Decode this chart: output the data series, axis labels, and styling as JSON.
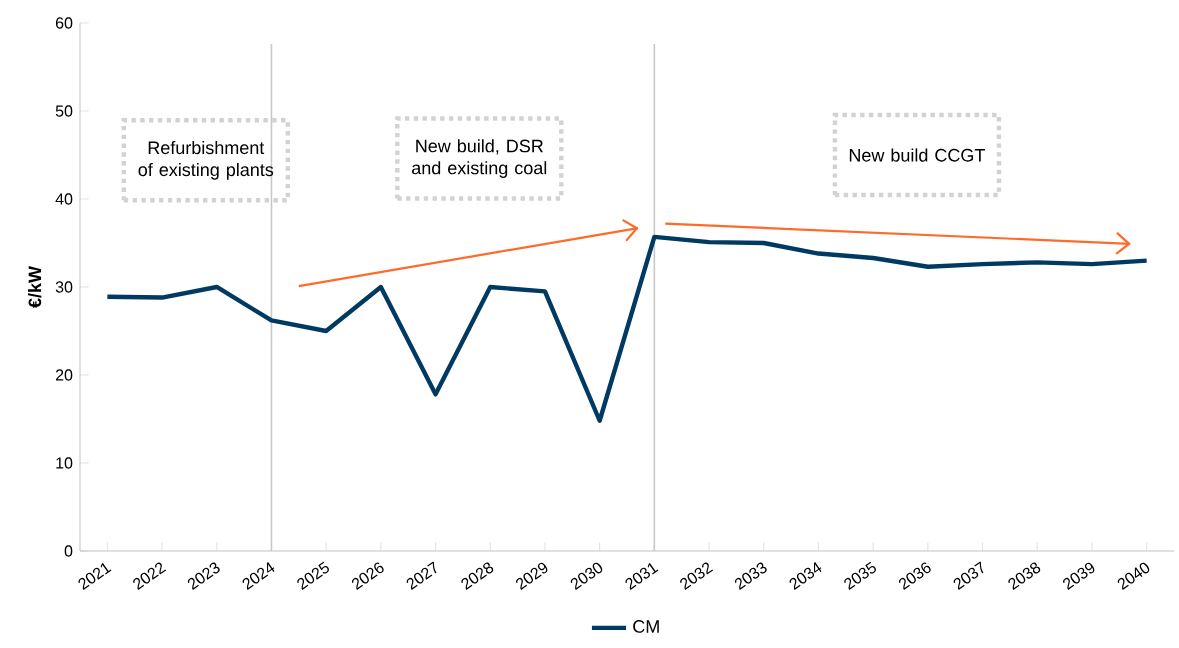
{
  "chart_data": {
    "type": "line",
    "ylabel": "€/kW",
    "x": [
      2021,
      2022,
      2023,
      2024,
      2025,
      2026,
      2027,
      2028,
      2029,
      2030,
      2031,
      2032,
      2033,
      2034,
      2035,
      2036,
      2037,
      2038,
      2039,
      2040
    ],
    "series": [
      {
        "name": "CM",
        "color": "#003a63",
        "values": [
          28.9,
          28.8,
          30.0,
          26.2,
          25.0,
          30.0,
          17.8,
          30.0,
          29.5,
          14.8,
          35.7,
          35.1,
          35.0,
          33.8,
          33.3,
          32.3,
          32.6,
          32.8,
          32.6,
          33.0
        ]
      },
      {
        "type": "line",
        "color": "#ff6a28",
        "x": [
          2024.5,
          2030.7
        ],
        "values": [
          30.1,
          36.7
        ]
      },
      {
        "type": "line",
        "color": "#ff6a28",
        "x": [
          2031.2,
          2039.7
        ],
        "values": [
          37.2,
          34.9
        ]
      }
    ],
    "xlim": [
      2020.5,
      2040.5
    ],
    "ylim": [
      0,
      60
    ],
    "xticks": [
      2021,
      2022,
      2023,
      2024,
      2025,
      2026,
      2027,
      2028,
      2029,
      2030,
      2031,
      2032,
      2033,
      2034,
      2035,
      2036,
      2037,
      2038,
      2039,
      2040
    ],
    "yticks": [
      0,
      10,
      20,
      30,
      40,
      50,
      60
    ],
    "ref_lines": [
      {
        "axis": "x",
        "value": 2024,
        "color": "#c8c8c8"
      },
      {
        "axis": "x",
        "value": 2031,
        "color": "#c8c8c8"
      }
    ],
    "annotations": [
      "Refurbishment of existing plants",
      "New build, DSR and existing coal",
      "New build CCGT"
    ],
    "legend": "bottom",
    "marker": "none",
    "line_style": "solid"
  }
}
